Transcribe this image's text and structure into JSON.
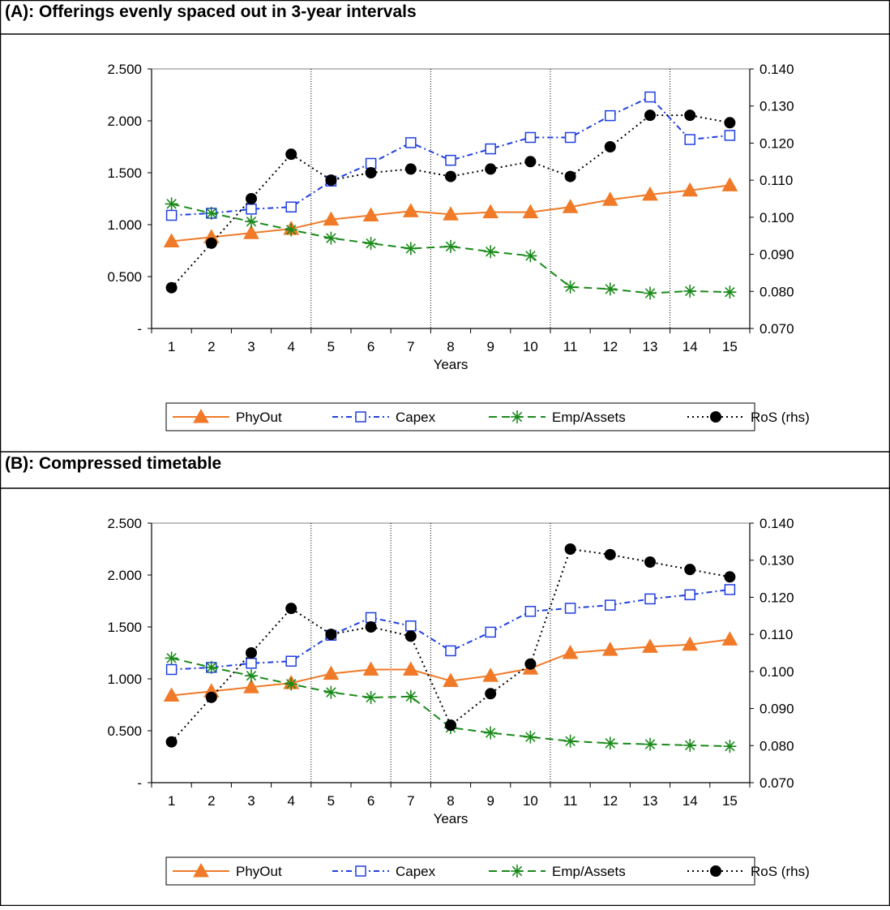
{
  "panels": [
    {
      "title": "(A): Offerings evenly spaced out in 3-year intervals",
      "xlabel": "Years",
      "legend": [
        "PhyOut",
        "Capex",
        "Emp/Assets",
        "RoS (rhs)"
      ]
    },
    {
      "title": "(B): Compressed timetable",
      "xlabel": "Years",
      "legend": [
        "PhyOut",
        "Capex",
        "Emp/Assets",
        "RoS (rhs)"
      ]
    }
  ],
  "colors": {
    "phyout": "#F07A28",
    "capex": "#1F3FE0",
    "emp": "#1A8A1A",
    "ros": "#000000"
  },
  "chart_data": [
    {
      "type": "line",
      "title": "(A): Offerings evenly spaced out in 3-year intervals",
      "xlabel": "Years",
      "categories": [
        "1",
        "2",
        "3",
        "4",
        "5",
        "6",
        "7",
        "8",
        "9",
        "10",
        "11",
        "12",
        "13",
        "14",
        "15"
      ],
      "y_left": {
        "ylim": [
          0,
          2.5
        ],
        "ticks": [
          "-",
          "0.500",
          "1.000",
          "1.500",
          "2.000",
          "2.500"
        ]
      },
      "y_right": {
        "ylim": [
          0.07,
          0.14
        ],
        "ticks": [
          "0.070",
          "0.080",
          "0.090",
          "0.100",
          "0.110",
          "0.120",
          "0.130",
          "0.140"
        ]
      },
      "vlines": [
        4,
        7,
        10,
        13
      ],
      "series": [
        {
          "name": "PhyOut",
          "axis": "left",
          "values": [
            0.84,
            0.88,
            0.92,
            0.96,
            1.05,
            1.09,
            1.13,
            1.1,
            1.12,
            1.12,
            1.17,
            1.24,
            1.29,
            1.33,
            1.38
          ]
        },
        {
          "name": "Capex",
          "axis": "left",
          "values": [
            1.09,
            1.11,
            1.15,
            1.17,
            1.42,
            1.59,
            1.79,
            1.62,
            1.73,
            1.84,
            1.84,
            2.05,
            2.23,
            1.82,
            1.86
          ]
        },
        {
          "name": "Emp/Assets",
          "axis": "left",
          "values": [
            1.2,
            1.11,
            1.03,
            0.95,
            0.87,
            0.82,
            0.77,
            0.79,
            0.74,
            0.7,
            0.4,
            0.38,
            0.34,
            0.36,
            0.35
          ]
        },
        {
          "name": "RoS (rhs)",
          "axis": "right",
          "values": [
            0.081,
            0.093,
            0.105,
            0.117,
            0.11,
            0.112,
            0.113,
            0.111,
            0.113,
            0.115,
            0.111,
            0.119,
            0.1275,
            0.1275,
            0.1255
          ]
        }
      ]
    },
    {
      "type": "line",
      "title": "(B): Compressed timetable",
      "xlabel": "Years",
      "categories": [
        "1",
        "2",
        "3",
        "4",
        "5",
        "6",
        "7",
        "8",
        "9",
        "10",
        "11",
        "12",
        "13",
        "14",
        "15"
      ],
      "y_left": {
        "ylim": [
          0,
          2.5
        ],
        "ticks": [
          "-",
          "0.500",
          "1.000",
          "1.500",
          "2.000",
          "2.500"
        ]
      },
      "y_right": {
        "ylim": [
          0.07,
          0.14
        ],
        "ticks": [
          "0.070",
          "0.080",
          "0.090",
          "0.100",
          "0.110",
          "0.120",
          "0.130",
          "0.140"
        ]
      },
      "vlines": [
        4,
        6,
        7,
        10
      ],
      "series": [
        {
          "name": "PhyOut",
          "axis": "left",
          "values": [
            0.84,
            0.88,
            0.92,
            0.96,
            1.05,
            1.09,
            1.09,
            0.98,
            1.03,
            1.1,
            1.25,
            1.28,
            1.31,
            1.33,
            1.38
          ]
        },
        {
          "name": "Capex",
          "axis": "left",
          "values": [
            1.09,
            1.11,
            1.15,
            1.17,
            1.42,
            1.59,
            1.51,
            1.27,
            1.45,
            1.65,
            1.68,
            1.71,
            1.77,
            1.81,
            1.86
          ]
        },
        {
          "name": "Emp/Assets",
          "axis": "left",
          "values": [
            1.2,
            1.11,
            1.03,
            0.95,
            0.87,
            0.82,
            0.83,
            0.53,
            0.48,
            0.44,
            0.4,
            0.38,
            0.37,
            0.36,
            0.35
          ]
        },
        {
          "name": "RoS (rhs)",
          "axis": "right",
          "values": [
            0.081,
            0.093,
            0.105,
            0.117,
            0.11,
            0.112,
            0.1095,
            0.0855,
            0.094,
            0.102,
            0.133,
            0.1315,
            0.1295,
            0.1275,
            0.1255
          ]
        }
      ]
    }
  ]
}
